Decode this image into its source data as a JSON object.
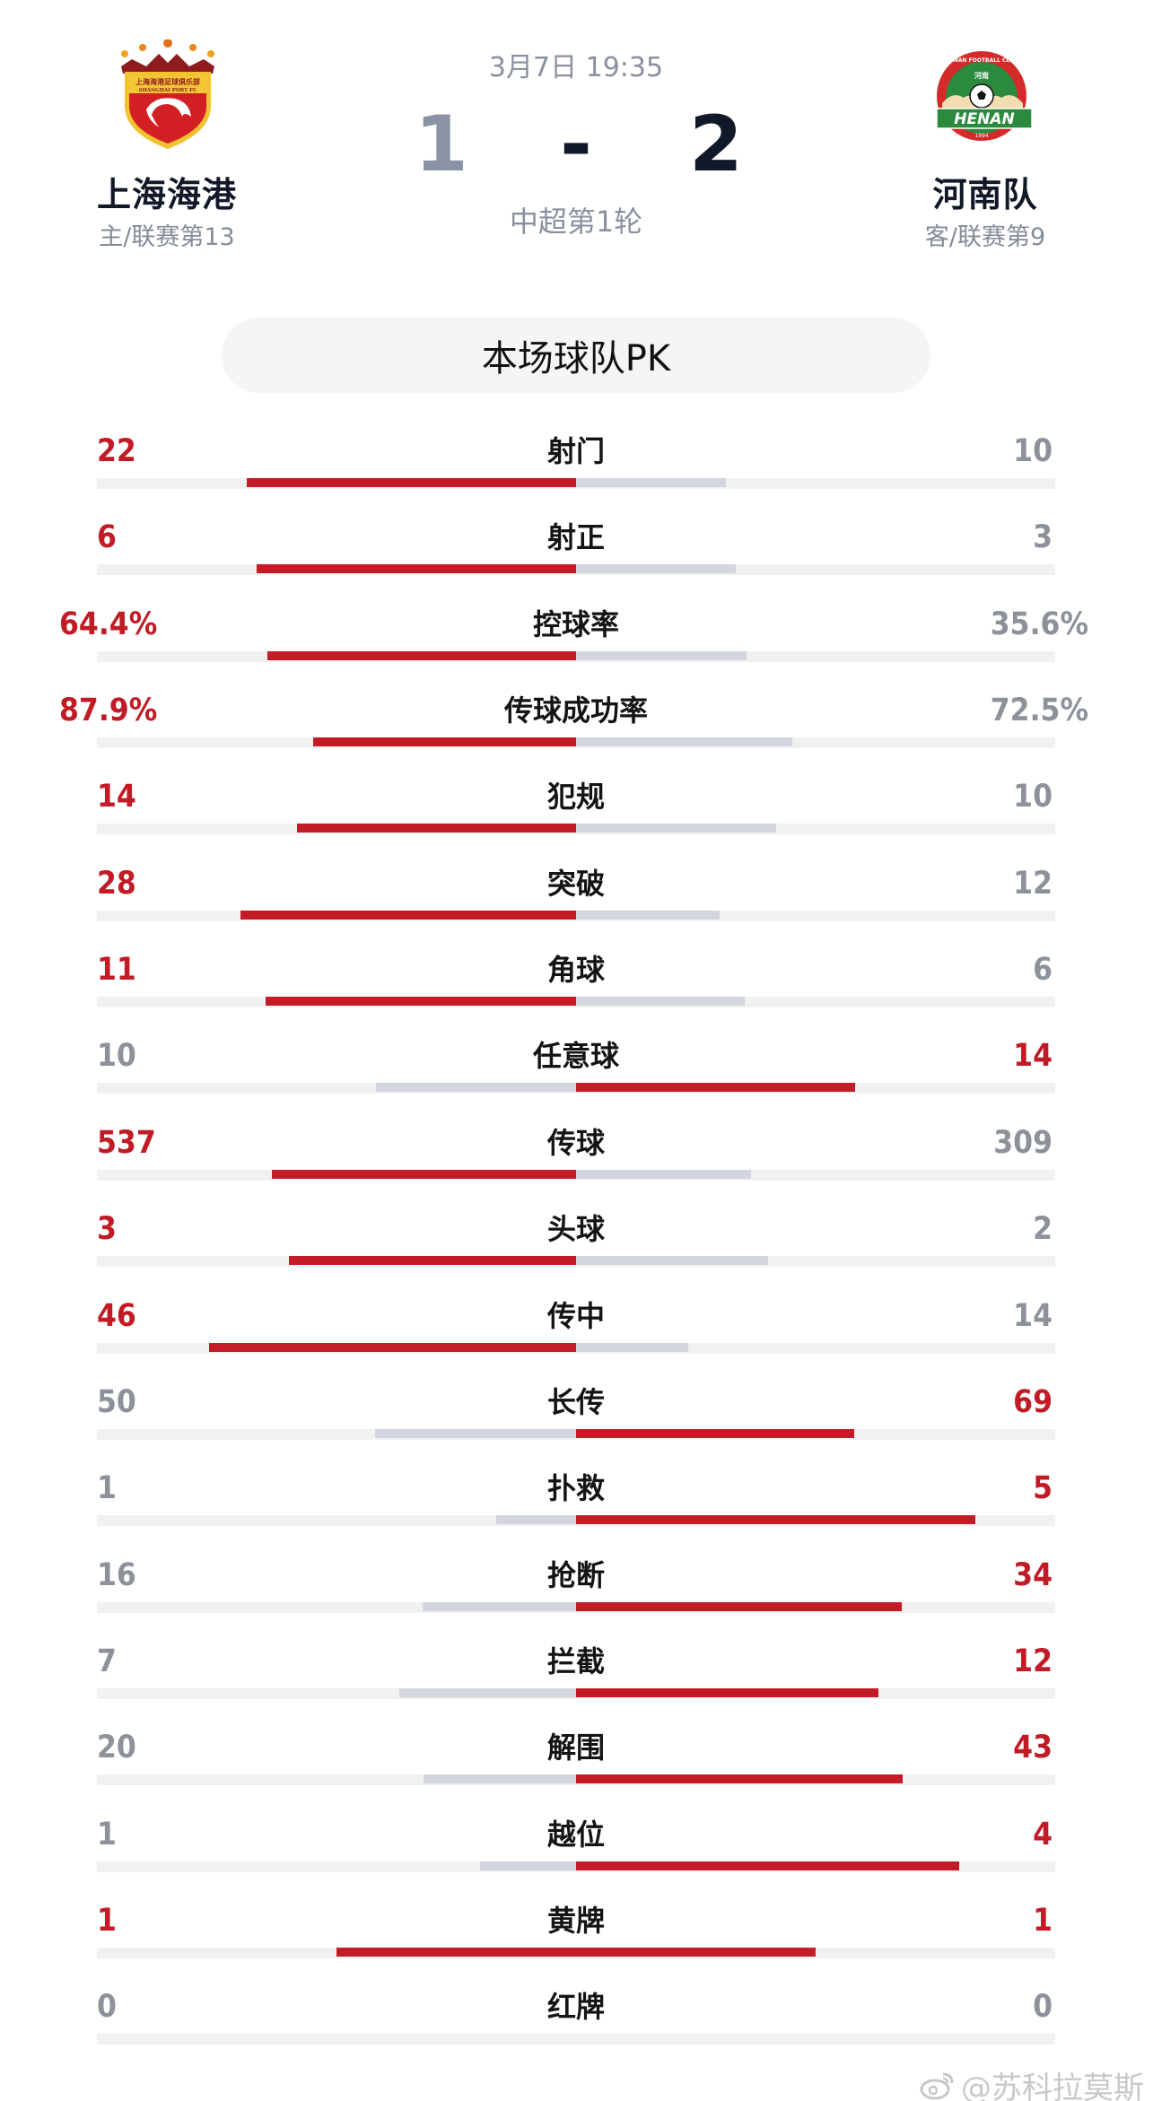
{
  "match": {
    "date": "3月7日 19:35",
    "round": "中超第1轮",
    "score_home": "1",
    "score_sep": "-",
    "score_away": "2"
  },
  "home": {
    "name": "上海海港",
    "sub": "主/联赛第13",
    "logo": "shanghai-port-crest",
    "logo_text_cn": "上海海港足球俱乐部",
    "logo_text_en": "SHANGHAI PORT FC"
  },
  "away": {
    "name": "河南队",
    "sub": "客/联赛第9",
    "logo": "henan-fc-crest",
    "logo_ring_text": "HENAN FOOTBALL CLUB",
    "logo_cn": "河南",
    "logo_banner": "HENAN",
    "logo_year": "1994"
  },
  "section_title": "本场球队PK",
  "colors": {
    "winner": "#c41c27",
    "loser_bar": "#d3d6df",
    "loser_text": "#8c919a",
    "track": "#f1f1f1"
  },
  "stats": [
    {
      "label": "射门",
      "home": "22",
      "away": "10",
      "home_share": 0.6875,
      "away_share": 0.3125,
      "leader": "home"
    },
    {
      "label": "射正",
      "home": "6",
      "away": "3",
      "home_share": 0.6667,
      "away_share": 0.3333,
      "leader": "home"
    },
    {
      "label": "控球率",
      "home": "64.4%",
      "away": "35.6%",
      "home_share": 0.644,
      "away_share": 0.356,
      "leader": "home"
    },
    {
      "label": "传球成功率",
      "home": "87.9%",
      "away": "72.5%",
      "home_share": 0.548,
      "away_share": 0.452,
      "leader": "home"
    },
    {
      "label": "犯规",
      "home": "14",
      "away": "10",
      "home_share": 0.5833,
      "away_share": 0.4167,
      "leader": "home"
    },
    {
      "label": "突破",
      "home": "28",
      "away": "12",
      "home_share": 0.7,
      "away_share": 0.3,
      "leader": "home"
    },
    {
      "label": "角球",
      "home": "11",
      "away": "6",
      "home_share": 0.6471,
      "away_share": 0.3529,
      "leader": "home"
    },
    {
      "label": "任意球",
      "home": "10",
      "away": "14",
      "home_share": 0.4167,
      "away_share": 0.5833,
      "leader": "away"
    },
    {
      "label": "传球",
      "home": "537",
      "away": "309",
      "home_share": 0.6348,
      "away_share": 0.3652,
      "leader": "home"
    },
    {
      "label": "头球",
      "home": "3",
      "away": "2",
      "home_share": 0.6,
      "away_share": 0.4,
      "leader": "home"
    },
    {
      "label": "传中",
      "home": "46",
      "away": "14",
      "home_share": 0.7667,
      "away_share": 0.2333,
      "leader": "home"
    },
    {
      "label": "长传",
      "home": "50",
      "away": "69",
      "home_share": 0.4202,
      "away_share": 0.5798,
      "leader": "away"
    },
    {
      "label": "扑救",
      "home": "1",
      "away": "5",
      "home_share": 0.1667,
      "away_share": 0.8333,
      "leader": "away"
    },
    {
      "label": "抢断",
      "home": "16",
      "away": "34",
      "home_share": 0.32,
      "away_share": 0.68,
      "leader": "away"
    },
    {
      "label": "拦截",
      "home": "7",
      "away": "12",
      "home_share": 0.3684,
      "away_share": 0.6316,
      "leader": "away"
    },
    {
      "label": "解围",
      "home": "20",
      "away": "43",
      "home_share": 0.3175,
      "away_share": 0.6825,
      "leader": "away"
    },
    {
      "label": "越位",
      "home": "1",
      "away": "4",
      "home_share": 0.2,
      "away_share": 0.8,
      "leader": "away"
    },
    {
      "label": "黄牌",
      "home": "1",
      "away": "1",
      "home_share": 0.5,
      "away_share": 0.5,
      "leader": "both"
    },
    {
      "label": "红牌",
      "home": "0",
      "away": "0",
      "home_share": 0,
      "away_share": 0,
      "leader": "none"
    }
  ],
  "watermark": "@苏科拉莫斯"
}
